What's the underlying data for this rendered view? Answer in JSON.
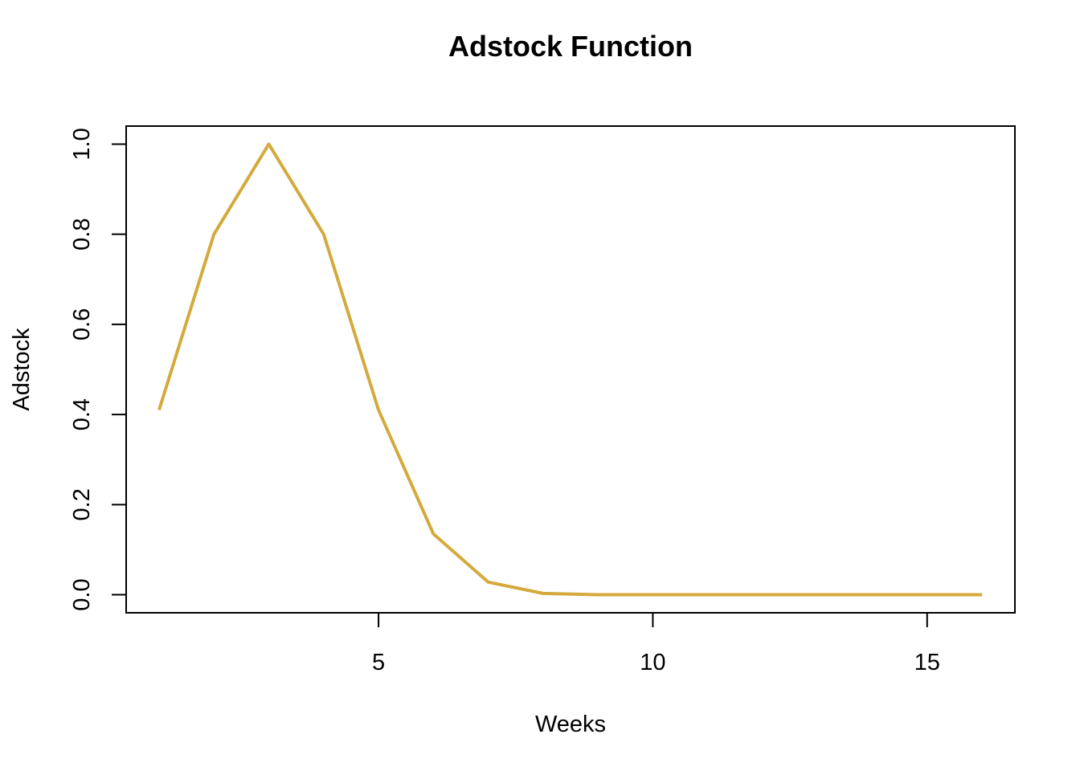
{
  "chart_data": {
    "type": "line",
    "title": "Adstock Function",
    "xlabel": "Weeks",
    "ylabel": "Adstock",
    "xlim": [
      0.4,
      16.6
    ],
    "ylim": [
      -0.04,
      1.04
    ],
    "x_ticks": [
      5,
      10,
      15
    ],
    "y_ticks": [
      0.0,
      0.2,
      0.4,
      0.6,
      0.8,
      1.0
    ],
    "x_tick_labels": [
      "5",
      "10",
      "15"
    ],
    "y_tick_labels": [
      "0.0",
      "0.2",
      "0.4",
      "0.6",
      "0.8",
      "1.0"
    ],
    "grid": false,
    "legend": "none",
    "series": [
      {
        "color": "#D4AA3C",
        "x": [
          1,
          2,
          3,
          4,
          5,
          6,
          7,
          8,
          9,
          10,
          11,
          12,
          13,
          14,
          15,
          16
        ],
        "y": [
          0.41,
          0.8,
          1.0,
          0.8,
          0.41,
          0.135,
          0.028,
          0.003,
          0.0,
          0.0,
          0.0,
          0.0,
          0.0,
          0.0,
          0.0,
          0.0
        ]
      }
    ]
  }
}
